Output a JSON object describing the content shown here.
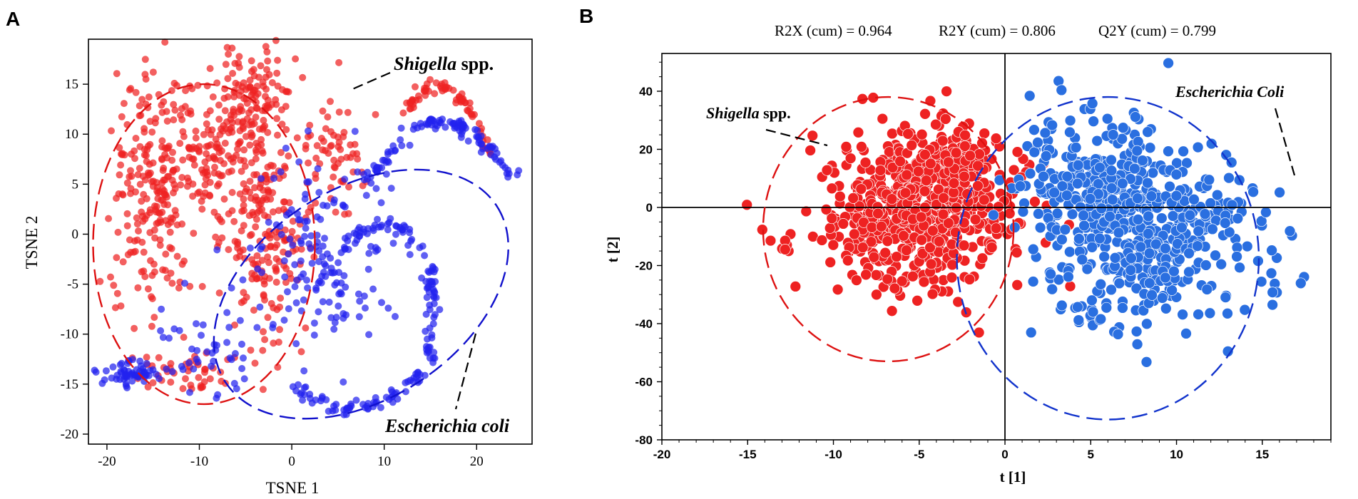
{
  "chart_data": [
    {
      "panel": "A",
      "type": "scatter",
      "title": "",
      "xlabel": "TSNE 1",
      "ylabel": "TSNE 2",
      "xlim": [
        -22,
        26
      ],
      "ylim": [
        -21,
        19.5
      ],
      "xticks": [
        -20,
        -10,
        0,
        10,
        20
      ],
      "yticks": [
        -20,
        -15,
        -10,
        -5,
        0,
        5,
        10,
        15
      ],
      "grid": false,
      "series": [
        {
          "name": "Shigella spp.",
          "color": "#ee2222",
          "clusters": [
            {
              "cx": -15,
              "cy": 4,
              "sx": 2.3,
              "sy": 6.5,
              "n": 240
            },
            {
              "cx": -7.5,
              "cy": 9,
              "sx": 2.5,
              "sy": 3.2,
              "n": 130
            },
            {
              "cx": -3.5,
              "cy": 14,
              "sx": 2.3,
              "sy": 2.5,
              "n": 90
            },
            {
              "cx": -3,
              "cy": 0,
              "sx": 2.2,
              "sy": 6,
              "n": 200
            },
            {
              "cx": -11,
              "cy": -14,
              "sx": 2.5,
              "sy": 1.0,
              "n": 40
            },
            {
              "cx": 5,
              "cy": 8,
              "sx": 2.0,
              "sy": 3,
              "n": 60
            }
          ],
          "arc": {
            "x0": 12,
            "y0": 12.5,
            "x1": 22,
            "y1": 7.5,
            "bend": 1.5,
            "n": 70
          }
        },
        {
          "name": "Escherichia coli",
          "color": "#2222ee",
          "clusters": [
            {
              "cx": 3,
              "cy": -2,
              "sx": 4.5,
              "sy": 4.5,
              "n": 160
            },
            {
              "cx": -17,
              "cy": -14,
              "sx": 2.0,
              "sy": 0.6,
              "n": 60
            },
            {
              "cx": -9,
              "cy": -12,
              "sx": 2.5,
              "sy": 2.5,
              "n": 40
            }
          ],
          "arc": {
            "x0": 0,
            "y0": -15,
            "x1": 14,
            "y1": -14,
            "bend": -1,
            "n": 70
          },
          "arcs2": [
            {
              "x0": 15,
              "y0": -14,
              "x1": 15,
              "y1": -3,
              "bend": 0.5,
              "n": 50
            },
            {
              "x0": 8,
              "y0": 5,
              "x1": 24,
              "y1": 5.5,
              "bend": 2,
              "n": 110
            },
            {
              "x0": 5,
              "y0": -2,
              "x1": 15,
              "y1": -2,
              "bend": 1,
              "n": 40
            }
          ]
        }
      ],
      "ellipses": [
        {
          "series": "Shigella spp.",
          "cx": -9.5,
          "cy": -1,
          "rx": 12,
          "ry": 16,
          "angle": 0,
          "color": "#dd1111"
        },
        {
          "series": "Escherichia coli",
          "cx": 7.5,
          "cy": -6,
          "rx": 17.5,
          "ry": 10.5,
          "angle": 33,
          "color": "#1111cc"
        }
      ],
      "annotations": [
        {
          "italic": "Shigella",
          "rest": " spp."
        },
        {
          "italic": "Escherichia coli",
          "rest": ""
        }
      ],
      "panel_label": "A",
      "seed": 7
    },
    {
      "panel": "B",
      "type": "scatter",
      "title": "R2X (cum) = 0.964     R2Y (cum) = 0.806     Q2Y (cum) = 0.799",
      "stats": [
        "R2X (cum) = 0.964",
        "R2Y (cum) = 0.806",
        "Q2Y (cum) = 0.799"
      ],
      "xlabel": "t [1]",
      "ylabel": "t [2]",
      "xlim": [
        -20,
        19
      ],
      "ylim": [
        -80,
        53
      ],
      "xticks": [
        -20,
        -15,
        -10,
        -5,
        0,
        5,
        10,
        15
      ],
      "yticks": [
        -80,
        -60,
        -40,
        -20,
        0,
        20,
        40
      ],
      "grid": false,
      "series": [
        {
          "name": "Shigella spp.",
          "color": "#ee2222",
          "clusters": [
            {
              "cx": -5.5,
              "cy": -3,
              "sx": 2.8,
              "sy": 13,
              "n": 520
            },
            {
              "cx": -3,
              "cy": 14,
              "sx": 1.6,
              "sy": 8,
              "n": 160
            },
            {
              "cx": 1,
              "cy": -10,
              "sx": 1.6,
              "sy": 12,
              "n": 14
            }
          ]
        },
        {
          "name": "Escherichia coli",
          "color": "#2a6fe0",
          "clusters": [
            {
              "cx": 5.5,
              "cy": 10,
              "sx": 2.2,
              "sy": 11,
              "n": 240
            },
            {
              "cx": 7.5,
              "cy": -18,
              "sx": 2.4,
              "sy": 14,
              "n": 280
            },
            {
              "cx": 11,
              "cy": 0,
              "sx": 2.2,
              "sy": 8,
              "n": 80
            },
            {
              "cx": 14.5,
              "cy": -18,
              "sx": 2.2,
              "sy": 12,
              "n": 24
            }
          ]
        }
      ],
      "ellipses": [
        {
          "series": "Shigella spp.",
          "cx": -6.8,
          "cy": -7.5,
          "rx": 7.3,
          "ry": 45.5,
          "angle": 0,
          "color": "#dd1111"
        },
        {
          "series": "Escherichia coli",
          "cx": 6,
          "cy": -17.5,
          "rx": 8.8,
          "ry": 55.5,
          "angle": 0,
          "color": "#1133cc"
        }
      ],
      "annotations": [
        {
          "italic": "Shigella",
          "rest": " spp."
        },
        {
          "italic": "Escherichia Coli",
          "rest": ""
        }
      ],
      "panel_label": "B",
      "seed": 21
    }
  ]
}
